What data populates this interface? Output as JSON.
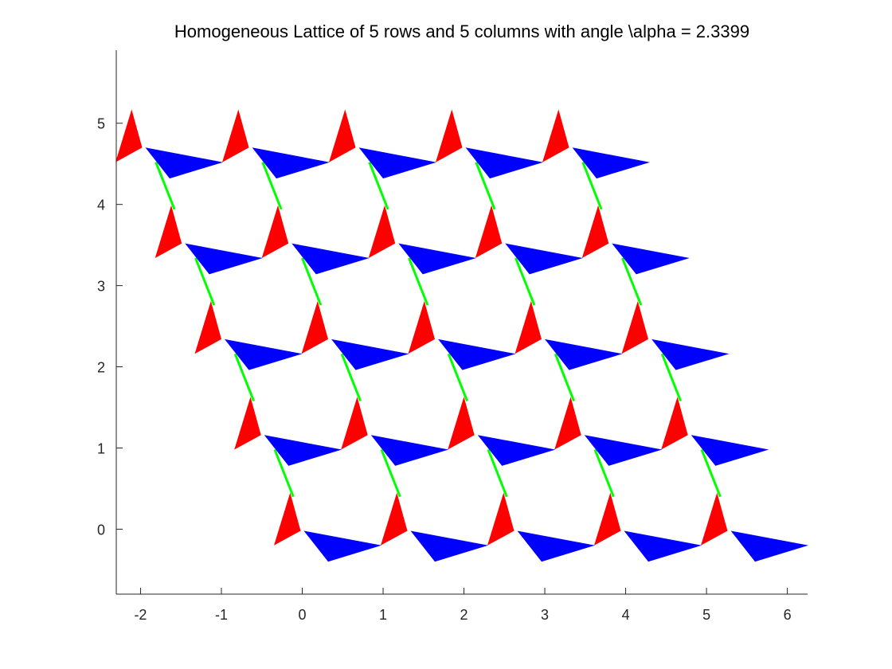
{
  "chart_data": {
    "type": "other",
    "title": "Homogeneous Lattice of 5 rows and 5 columns with angle \\alpha = 2.3399",
    "xlabel": "",
    "ylabel": "",
    "xlim": [
      -2.3,
      6.25
    ],
    "ylim": [
      -0.8,
      5.9
    ],
    "xticks": [
      -2,
      -1,
      0,
      1,
      2,
      3,
      4,
      5,
      6
    ],
    "yticks": [
      0,
      1,
      2,
      3,
      4,
      5
    ],
    "grid": false,
    "lattice": {
      "rows": 5,
      "columns": 5,
      "origin": [
        0,
        0
      ],
      "column_step": [
        1.32,
        0
      ],
      "row_step": [
        -0.49,
        1.18
      ]
    },
    "cell": {
      "red_triangle": [
        [
          -0.35,
          -0.2
        ],
        [
          -0.02,
          -0.02
        ],
        [
          -0.15,
          0.45
        ]
      ],
      "blue_triangle": [
        [
          0.02,
          -0.02
        ],
        [
          0.98,
          -0.2
        ],
        [
          0.32,
          -0.4
        ]
      ],
      "green_segment": [
        [
          -0.34,
          0.98
        ],
        [
          -0.11,
          0.4
        ]
      ]
    },
    "colors": {
      "red": "#ff0000",
      "blue": "#0000ff",
      "green": "#00ff00",
      "axis": "#262626"
    }
  }
}
